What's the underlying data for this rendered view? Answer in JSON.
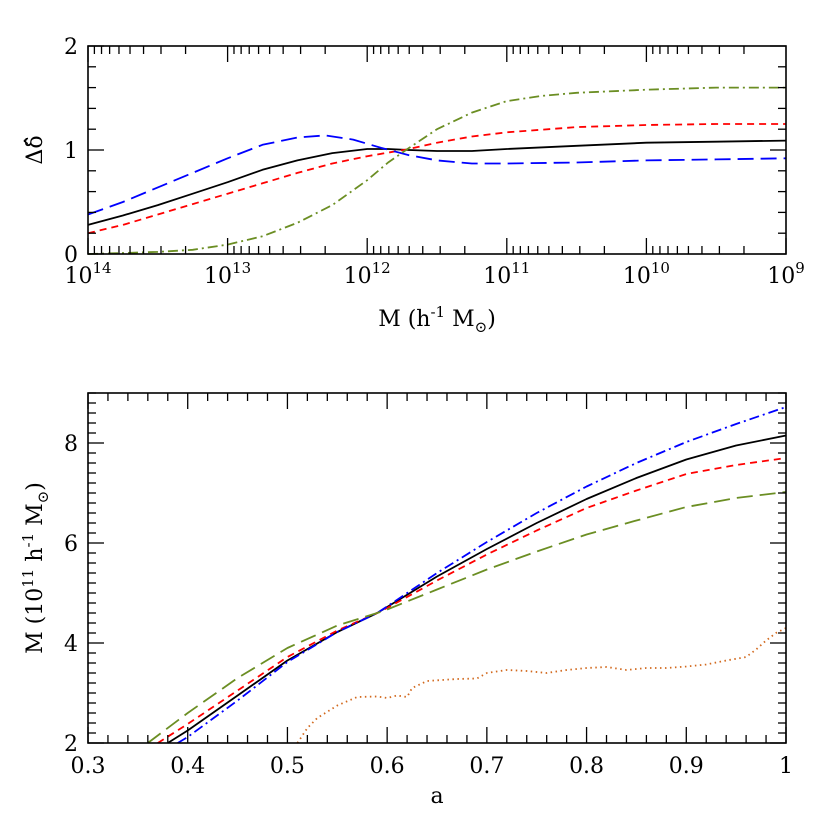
{
  "chart_data": [
    {
      "type": "line",
      "xscale": "log",
      "xdir": "reversed",
      "xlim_exponents": [
        14,
        9
      ],
      "ylim": [
        0,
        2
      ],
      "xlabel": "M (h",
      "xlabel_sup": "-1",
      "xlabel_tail": " M",
      "xlabel_sub": "⊙",
      "xlabel_close": ")",
      "ylabel": "Δδ̂",
      "xtick_base": "10",
      "xtick_exponents": [
        "14",
        "13",
        "12",
        "11",
        "10",
        "9"
      ],
      "ytick_labels": [
        "0",
        "1",
        "2"
      ],
      "ytick_values": [
        0,
        1,
        2
      ],
      "series": [
        {
          "name": "black-solid",
          "color": "#000000",
          "dash": "",
          "x_log10": [
            14,
            13.75,
            13.5,
            13.25,
            13,
            12.75,
            12.5,
            12.25,
            12,
            11.85,
            11.7,
            11.5,
            11.25,
            11,
            10.5,
            10,
            9.5,
            9
          ],
          "y": [
            0.28,
            0.37,
            0.47,
            0.58,
            0.69,
            0.81,
            0.9,
            0.97,
            1.01,
            1.01,
            1.0,
            0.99,
            0.99,
            1.01,
            1.04,
            1.07,
            1.08,
            1.09
          ]
        },
        {
          "name": "red-short-dash",
          "color": "#ff0000",
          "dash": "7,5",
          "x_log10": [
            14,
            13.75,
            13.5,
            13.25,
            13,
            12.75,
            12.5,
            12.25,
            12,
            11.7,
            11.5,
            11.25,
            11,
            10.5,
            10,
            9.5,
            9
          ],
          "y": [
            0.2,
            0.28,
            0.38,
            0.48,
            0.58,
            0.68,
            0.78,
            0.87,
            0.94,
            1.01,
            1.07,
            1.13,
            1.17,
            1.22,
            1.24,
            1.25,
            1.25
          ]
        },
        {
          "name": "blue-long-dash",
          "color": "#0000ff",
          "dash": "16,7",
          "x_log10": [
            14,
            13.75,
            13.5,
            13.25,
            13,
            12.75,
            12.5,
            12.3,
            12.1,
            11.9,
            11.7,
            11.5,
            11.25,
            11,
            10.5,
            10,
            9.5,
            9
          ],
          "y": [
            0.38,
            0.5,
            0.64,
            0.78,
            0.92,
            1.05,
            1.12,
            1.14,
            1.1,
            1.02,
            0.95,
            0.9,
            0.87,
            0.87,
            0.88,
            0.9,
            0.91,
            0.92
          ]
        },
        {
          "name": "olive-dash-dot",
          "color": "#6b8e23",
          "dash": "10,4,2,4",
          "x_log10": [
            14,
            13.75,
            13.5,
            13.25,
            13,
            12.75,
            12.5,
            12.25,
            12,
            11.85,
            11.7,
            11.5,
            11.25,
            11,
            10.75,
            10.5,
            10,
            9.5,
            9
          ],
          "y": [
            0.0,
            0.01,
            0.02,
            0.04,
            0.09,
            0.17,
            0.3,
            0.47,
            0.71,
            0.88,
            1.02,
            1.2,
            1.36,
            1.47,
            1.52,
            1.55,
            1.58,
            1.6,
            1.6
          ]
        }
      ]
    },
    {
      "type": "line",
      "xlim": [
        0.3,
        1.0
      ],
      "ylim": [
        2,
        9
      ],
      "xlabel": "a",
      "ylabel_prefix": "M (10",
      "ylabel_sup1": "11",
      "ylabel_mid": " h",
      "ylabel_sup2": "-1",
      "ylabel_tail": " M",
      "ylabel_sub": "⊙",
      "ylabel_close": ")",
      "xtick_labels": [
        "0.3",
        "0.4",
        "0.5",
        "0.6",
        "0.7",
        "0.8",
        "0.9",
        "1"
      ],
      "xtick_values": [
        0.3,
        0.4,
        0.5,
        0.6,
        0.7,
        0.8,
        0.9,
        1.0
      ],
      "ytick_labels": [
        "2",
        "4",
        "6",
        "8"
      ],
      "ytick_values": [
        2,
        4,
        6,
        8
      ],
      "series": [
        {
          "name": "black-solid",
          "color": "#000000",
          "dash": "",
          "x": [
            0.38,
            0.4,
            0.45,
            0.5,
            0.55,
            0.59,
            0.6,
            0.65,
            0.7,
            0.75,
            0.8,
            0.85,
            0.9,
            0.95,
            1.0
          ],
          "y": [
            2.0,
            2.25,
            2.95,
            3.65,
            4.22,
            4.6,
            4.72,
            5.33,
            5.88,
            6.4,
            6.88,
            7.3,
            7.67,
            7.95,
            8.15
          ]
        },
        {
          "name": "red-short-dash",
          "color": "#ff0000",
          "dash": "7,5",
          "x": [
            0.37,
            0.4,
            0.45,
            0.5,
            0.55,
            0.59,
            0.6,
            0.65,
            0.7,
            0.75,
            0.8,
            0.85,
            0.9,
            0.95,
            1.0
          ],
          "y": [
            2.0,
            2.38,
            3.05,
            3.72,
            4.25,
            4.6,
            4.7,
            5.25,
            5.77,
            6.25,
            6.7,
            7.05,
            7.38,
            7.56,
            7.7
          ]
        },
        {
          "name": "blue-dash-dot",
          "color": "#0000ff",
          "dash": "10,4,2,4",
          "x": [
            0.39,
            0.4,
            0.45,
            0.5,
            0.55,
            0.59,
            0.6,
            0.65,
            0.7,
            0.75,
            0.8,
            0.85,
            0.9,
            0.95,
            1.0
          ],
          "y": [
            2.0,
            2.12,
            2.85,
            3.62,
            4.22,
            4.6,
            4.73,
            5.4,
            6.02,
            6.6,
            7.13,
            7.6,
            8.02,
            8.38,
            8.72
          ]
        },
        {
          "name": "olive-long-dash",
          "color": "#6b8e23",
          "dash": "16,7",
          "x": [
            0.36,
            0.4,
            0.45,
            0.5,
            0.55,
            0.59,
            0.6,
            0.65,
            0.7,
            0.75,
            0.8,
            0.85,
            0.9,
            0.95,
            1.0
          ],
          "y": [
            2.0,
            2.6,
            3.3,
            3.9,
            4.35,
            4.6,
            4.67,
            5.07,
            5.47,
            5.83,
            6.17,
            6.45,
            6.72,
            6.9,
            7.02
          ]
        },
        {
          "name": "orange-dotted",
          "color": "#d2691e",
          "dash": "1.5,3.5",
          "x": [
            0.51,
            0.52,
            0.53,
            0.55,
            0.57,
            0.59,
            0.6,
            0.61,
            0.62,
            0.625,
            0.64,
            0.67,
            0.69,
            0.7,
            0.72,
            0.74,
            0.76,
            0.78,
            0.8,
            0.82,
            0.84,
            0.86,
            0.88,
            0.9,
            0.92,
            0.94,
            0.96,
            0.97,
            0.98,
            0.99,
            1.0
          ],
          "y": [
            2.0,
            2.3,
            2.5,
            2.75,
            2.92,
            2.93,
            2.9,
            2.95,
            2.92,
            3.1,
            3.24,
            3.28,
            3.29,
            3.4,
            3.46,
            3.44,
            3.4,
            3.46,
            3.5,
            3.52,
            3.46,
            3.5,
            3.5,
            3.53,
            3.57,
            3.65,
            3.72,
            3.87,
            4.05,
            4.2,
            4.3
          ]
        }
      ]
    }
  ]
}
